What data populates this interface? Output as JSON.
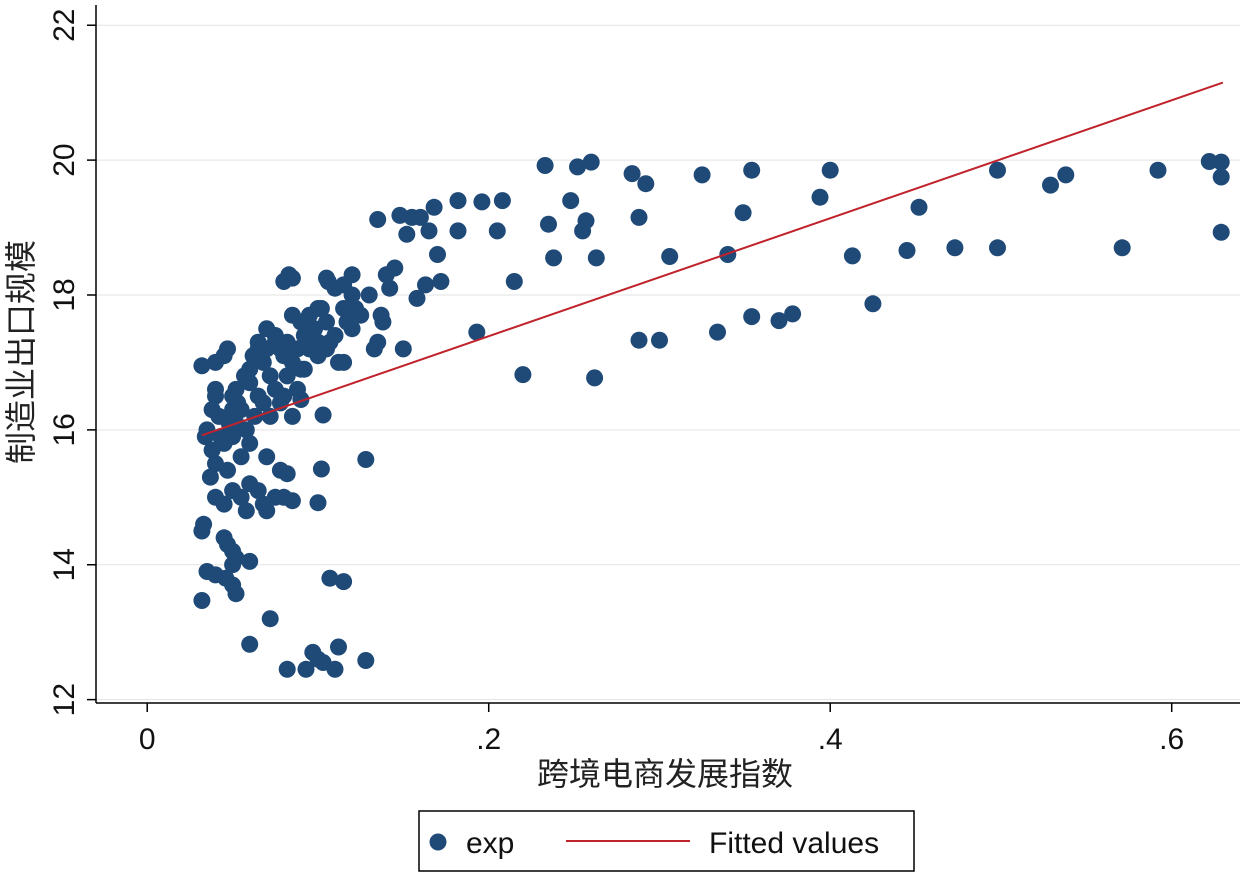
{
  "chart_data": {
    "type": "scatter",
    "title": "",
    "xlabel": "跨境电商发展指数",
    "ylabel": "制造业出口规模",
    "xlim": [
      -0.03,
      0.64
    ],
    "ylim": [
      11.95,
      22.3
    ],
    "xticks": [
      {
        "value": 0,
        "label": "0"
      },
      {
        "value": 0.2,
        "label": ".2"
      },
      {
        "value": 0.4,
        "label": ".4"
      },
      {
        "value": 0.6,
        "label": ".6"
      }
    ],
    "yticks": [
      {
        "value": 12,
        "label": "12"
      },
      {
        "value": 14,
        "label": "14"
      },
      {
        "value": 16,
        "label": "16"
      },
      {
        "value": 18,
        "label": "18"
      },
      {
        "value": 20,
        "label": "20"
      },
      {
        "value": 22,
        "label": "22"
      }
    ],
    "grid": true,
    "legend_position": "bottom",
    "series": [
      {
        "name": "exp",
        "type": "scatter",
        "color": "#1f4a78",
        "points": [
          [
            0.032,
            13.47
          ],
          [
            0.032,
            14.5
          ],
          [
            0.033,
            14.6
          ],
          [
            0.035,
            13.9
          ],
          [
            0.04,
            13.85
          ],
          [
            0.046,
            13.8
          ],
          [
            0.05,
            13.7
          ],
          [
            0.052,
            13.57
          ],
          [
            0.037,
            15.3
          ],
          [
            0.034,
            15.9
          ],
          [
            0.038,
            16.3
          ],
          [
            0.04,
            16.5
          ],
          [
            0.042,
            16.2
          ],
          [
            0.04,
            16.6
          ],
          [
            0.045,
            15.8
          ],
          [
            0.047,
            15.4
          ],
          [
            0.05,
            15.9
          ],
          [
            0.053,
            16.4
          ],
          [
            0.055,
            15.6
          ],
          [
            0.057,
            16.8
          ],
          [
            0.06,
            16.7
          ],
          [
            0.032,
            16.95
          ],
          [
            0.04,
            17.0
          ],
          [
            0.045,
            17.1
          ],
          [
            0.047,
            17.2
          ],
          [
            0.05,
            16.5
          ],
          [
            0.052,
            16.1
          ],
          [
            0.055,
            16.3
          ],
          [
            0.06,
            16.9
          ],
          [
            0.062,
            17.1
          ],
          [
            0.065,
            17.3
          ],
          [
            0.068,
            17.0
          ],
          [
            0.07,
            17.2
          ],
          [
            0.072,
            16.8
          ],
          [
            0.075,
            17.3
          ],
          [
            0.078,
            17.2
          ],
          [
            0.08,
            17.1
          ],
          [
            0.082,
            17.3
          ],
          [
            0.085,
            17.0
          ],
          [
            0.088,
            17.2
          ],
          [
            0.09,
            16.9
          ],
          [
            0.092,
            17.4
          ],
          [
            0.095,
            17.2
          ],
          [
            0.098,
            17.5
          ],
          [
            0.1,
            17.3
          ],
          [
            0.102,
            17.8
          ],
          [
            0.105,
            17.6
          ],
          [
            0.107,
            17.3
          ],
          [
            0.11,
            17.4
          ],
          [
            0.112,
            17.0
          ],
          [
            0.115,
            17.8
          ],
          [
            0.117,
            17.6
          ],
          [
            0.12,
            18.0
          ],
          [
            0.122,
            17.8
          ],
          [
            0.125,
            17.7
          ],
          [
            0.13,
            18.0
          ],
          [
            0.133,
            17.2
          ],
          [
            0.135,
            17.3
          ],
          [
            0.138,
            17.6
          ],
          [
            0.14,
            18.3
          ],
          [
            0.145,
            18.4
          ],
          [
            0.142,
            18.1
          ],
          [
            0.137,
            17.7
          ],
          [
            0.105,
            18.25
          ],
          [
            0.106,
            18.2
          ],
          [
            0.11,
            18.1
          ],
          [
            0.115,
            18.15
          ],
          [
            0.12,
            18.3
          ],
          [
            0.08,
            18.2
          ],
          [
            0.083,
            18.3
          ],
          [
            0.085,
            18.25
          ],
          [
            0.135,
            19.12
          ],
          [
            0.148,
            19.18
          ],
          [
            0.152,
            18.9
          ],
          [
            0.155,
            19.15
          ],
          [
            0.16,
            19.15
          ],
          [
            0.165,
            18.95
          ],
          [
            0.168,
            19.3
          ],
          [
            0.17,
            18.6
          ],
          [
            0.158,
            17.95
          ],
          [
            0.163,
            18.15
          ],
          [
            0.172,
            18.2
          ],
          [
            0.15,
            17.2
          ],
          [
            0.182,
            19.4
          ],
          [
            0.182,
            18.95
          ],
          [
            0.196,
            19.38
          ],
          [
            0.205,
            18.95
          ],
          [
            0.208,
            19.4
          ],
          [
            0.215,
            18.2
          ],
          [
            0.193,
            17.45
          ],
          [
            0.22,
            16.82
          ],
          [
            0.233,
            19.92
          ],
          [
            0.235,
            19.05
          ],
          [
            0.238,
            18.55
          ],
          [
            0.248,
            19.4
          ],
          [
            0.252,
            19.9
          ],
          [
            0.255,
            18.95
          ],
          [
            0.257,
            19.1
          ],
          [
            0.26,
            19.97
          ],
          [
            0.263,
            18.55
          ],
          [
            0.262,
            16.77
          ],
          [
            0.284,
            19.8
          ],
          [
            0.288,
            19.15
          ],
          [
            0.292,
            19.65
          ],
          [
            0.288,
            17.33
          ],
          [
            0.3,
            17.33
          ],
          [
            0.306,
            18.57
          ],
          [
            0.325,
            19.78
          ],
          [
            0.334,
            17.45
          ],
          [
            0.34,
            18.6
          ],
          [
            0.349,
            19.22
          ],
          [
            0.354,
            19.85
          ],
          [
            0.354,
            17.68
          ],
          [
            0.37,
            17.62
          ],
          [
            0.378,
            17.72
          ],
          [
            0.394,
            19.45
          ],
          [
            0.4,
            19.85
          ],
          [
            0.413,
            18.58
          ],
          [
            0.425,
            17.87
          ],
          [
            0.445,
            18.66
          ],
          [
            0.452,
            19.3
          ],
          [
            0.473,
            18.7
          ],
          [
            0.498,
            19.85
          ],
          [
            0.498,
            18.7
          ],
          [
            0.529,
            19.63
          ],
          [
            0.538,
            19.78
          ],
          [
            0.571,
            18.7
          ],
          [
            0.592,
            19.85
          ],
          [
            0.622,
            19.98
          ],
          [
            0.629,
            19.97
          ],
          [
            0.629,
            19.75
          ],
          [
            0.629,
            18.93
          ],
          [
            0.04,
            15.0
          ],
          [
            0.045,
            14.9
          ],
          [
            0.05,
            15.1
          ],
          [
            0.055,
            15.0
          ],
          [
            0.058,
            14.8
          ],
          [
            0.06,
            15.2
          ],
          [
            0.065,
            15.1
          ],
          [
            0.068,
            14.9
          ],
          [
            0.07,
            14.8
          ],
          [
            0.075,
            15.0
          ],
          [
            0.08,
            15.0
          ],
          [
            0.085,
            14.95
          ],
          [
            0.078,
            15.4
          ],
          [
            0.082,
            15.35
          ],
          [
            0.07,
            15.6
          ],
          [
            0.047,
            14.3
          ],
          [
            0.05,
            14.2
          ],
          [
            0.052,
            14.1
          ],
          [
            0.05,
            14.0
          ],
          [
            0.06,
            14.05
          ],
          [
            0.045,
            14.4
          ],
          [
            0.102,
            15.42
          ],
          [
            0.128,
            15.56
          ],
          [
            0.1,
            14.92
          ],
          [
            0.103,
            16.22
          ],
          [
            0.107,
            13.8
          ],
          [
            0.115,
            13.75
          ],
          [
            0.072,
            13.2
          ],
          [
            0.06,
            12.82
          ],
          [
            0.082,
            12.45
          ],
          [
            0.093,
            12.45
          ],
          [
            0.097,
            12.7
          ],
          [
            0.1,
            12.6
          ],
          [
            0.103,
            12.55
          ],
          [
            0.11,
            12.45
          ],
          [
            0.112,
            12.78
          ],
          [
            0.128,
            12.58
          ],
          [
            0.035,
            16.0
          ],
          [
            0.038,
            15.7
          ],
          [
            0.04,
            15.5
          ],
          [
            0.043,
            15.9
          ],
          [
            0.048,
            16.1
          ],
          [
            0.05,
            16.3
          ],
          [
            0.052,
            16.6
          ],
          [
            0.058,
            16.0
          ],
          [
            0.06,
            15.8
          ],
          [
            0.063,
            16.2
          ],
          [
            0.065,
            16.5
          ],
          [
            0.068,
            16.4
          ],
          [
            0.072,
            16.2
          ],
          [
            0.075,
            16.6
          ],
          [
            0.078,
            16.4
          ],
          [
            0.08,
            16.5
          ],
          [
            0.082,
            16.8
          ],
          [
            0.085,
            16.2
          ],
          [
            0.088,
            16.6
          ],
          [
            0.09,
            16.45
          ],
          [
            0.085,
            17.7
          ],
          [
            0.09,
            17.6
          ],
          [
            0.095,
            17.7
          ],
          [
            0.1,
            17.8
          ],
          [
            0.075,
            17.4
          ],
          [
            0.07,
            17.5
          ],
          [
            0.065,
            17.2
          ],
          [
            0.1,
            17.1
          ],
          [
            0.105,
            17.2
          ],
          [
            0.092,
            16.9
          ],
          [
            0.115,
            17.0
          ],
          [
            0.12,
            17.5
          ]
        ]
      },
      {
        "name": "Fitted values",
        "type": "line",
        "color": "#c0232c",
        "points": [
          [
            0.032,
            15.92
          ],
          [
            0.63,
            21.15
          ]
        ]
      }
    ]
  },
  "legend": {
    "items": [
      {
        "label": "exp",
        "kind": "marker",
        "color": "#1f4a78"
      },
      {
        "label": "Fitted values",
        "kind": "line",
        "color": "#c0232c"
      }
    ]
  }
}
